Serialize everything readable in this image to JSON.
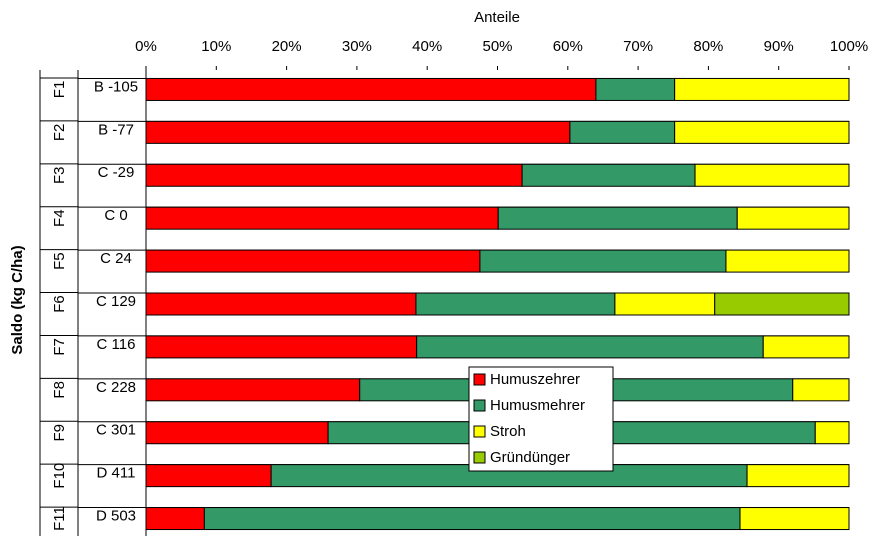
{
  "chart_data": {
    "type": "stacked_bar_horizontal",
    "title": "Anteile",
    "y_label": "Saldo (kg C/ha)",
    "groups": [
      "F1",
      "F2",
      "F3",
      "F4",
      "F5",
      "F6",
      "F7",
      "F8",
      "F9",
      "F10",
      "F11"
    ],
    "categories": [
      "B -105",
      "B -77",
      "C -29",
      "C 0",
      "C 24",
      "C 129",
      "C 116",
      "C 228",
      "C 301",
      "D 411",
      "D 503"
    ],
    "series": [
      {
        "name": "Humuszehrer",
        "color": "#ff0000",
        "values": [
          64,
          60.3,
          53.5,
          50.1,
          47.5,
          38.4,
          38.5,
          30.4,
          25.9,
          17.8,
          8.3
        ]
      },
      {
        "name": "Humusmehrer",
        "color": "#339966",
        "values": [
          11.2,
          14.9,
          24.6,
          34,
          35,
          28.3,
          49.3,
          61.6,
          69.3,
          67.7,
          76.2
        ]
      },
      {
        "name": "Stroh",
        "color": "#ffff00",
        "values": [
          24.8,
          24.8,
          21.9,
          15.9,
          17.5,
          14.2,
          12.2,
          8,
          4.8,
          14.5,
          15.5
        ]
      },
      {
        "name": "Gründünger",
        "color": "#99cc00",
        "values": [
          0,
          0,
          0,
          0,
          0,
          19.1,
          0,
          0,
          0,
          0,
          0
        ]
      }
    ],
    "xlim": [
      0,
      100
    ],
    "xticks": [
      {
        "value": 0,
        "label": "0%"
      },
      {
        "value": 10,
        "label": "10%"
      },
      {
        "value": 20,
        "label": "20%"
      },
      {
        "value": 30,
        "label": "30%"
      },
      {
        "value": 40,
        "label": "40%"
      },
      {
        "value": 50,
        "label": "50%"
      },
      {
        "value": 60,
        "label": "60%"
      },
      {
        "value": 70,
        "label": "70%"
      },
      {
        "value": 80,
        "label": "80%"
      },
      {
        "value": 90,
        "label": "90%"
      },
      {
        "value": 100,
        "label": "100%"
      }
    ],
    "legend": "center"
  }
}
